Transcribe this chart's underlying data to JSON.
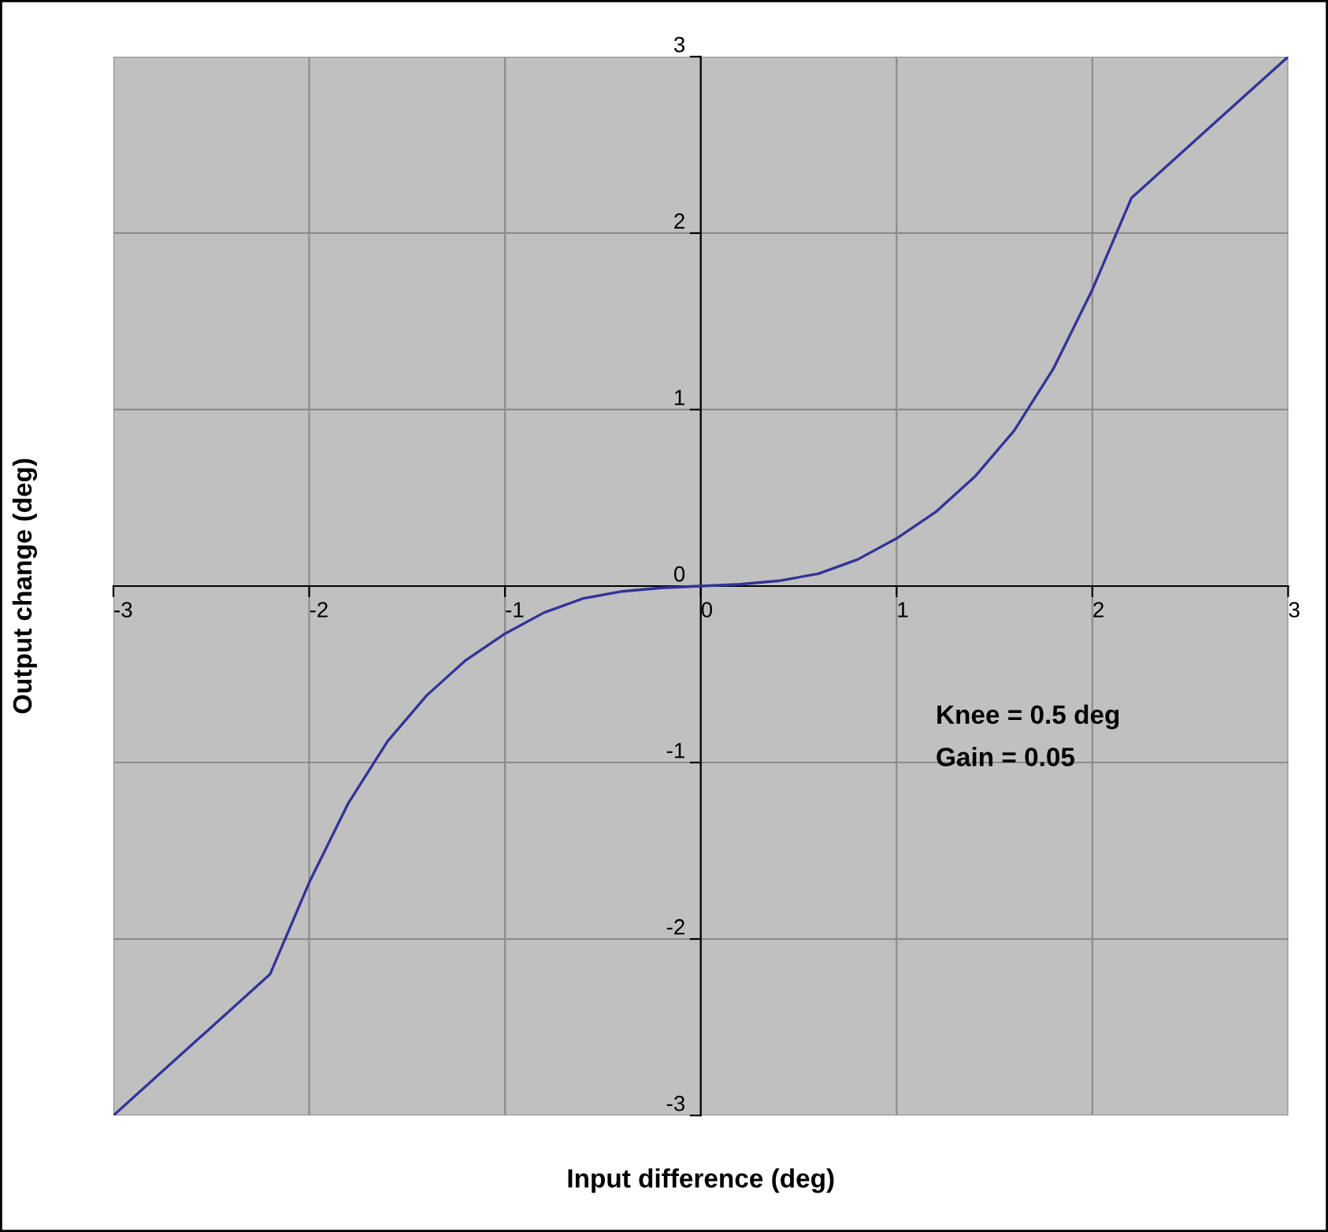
{
  "chart_data": {
    "type": "line",
    "xlabel": "Input difference (deg)",
    "ylabel": "Output change (deg)",
    "x": [
      -3,
      -2.2,
      -2.0,
      -1.8,
      -1.6,
      -1.4,
      -1.2,
      -1.0,
      -0.8,
      -0.6,
      -0.4,
      -0.2,
      0,
      0.2,
      0.4,
      0.6,
      0.8,
      1.0,
      1.2,
      1.4,
      1.6,
      1.8,
      2.0,
      2.2,
      3
    ],
    "series": [
      {
        "color": "#333399",
        "values": [
          -3,
          -2.2,
          -1.68,
          -1.23,
          -0.88,
          -0.62,
          -0.42,
          -0.27,
          -0.15,
          -0.07,
          -0.03,
          -0.01,
          0,
          0.01,
          0.03,
          0.07,
          0.15,
          0.27,
          0.42,
          0.62,
          0.88,
          1.23,
          1.68,
          2.2,
          3
        ]
      }
    ],
    "xlim": [
      -3,
      3
    ],
    "ylim": [
      -3,
      3
    ],
    "xticks": [
      -3,
      -2,
      -1,
      0,
      1,
      2,
      3
    ],
    "yticks": [
      -3,
      -2,
      -1,
      0,
      1,
      2,
      3
    ],
    "grid": true,
    "marker": "none",
    "line_style": "solid",
    "annotations": [
      "Knee = 0.5 deg",
      "Gain = 0.05"
    ]
  }
}
